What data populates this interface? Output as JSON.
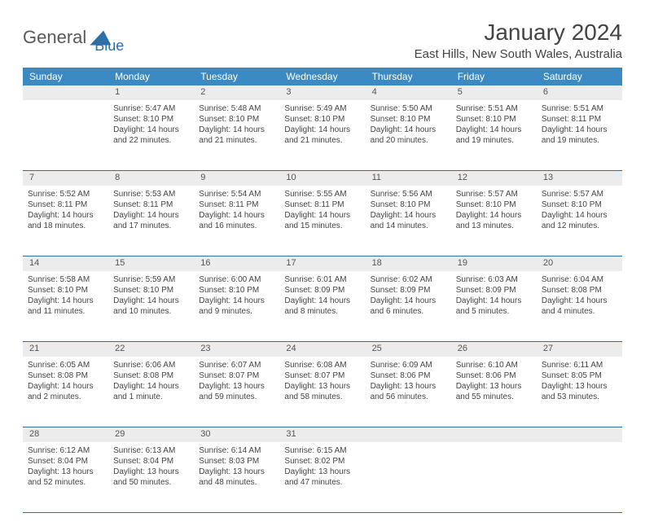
{
  "logo": {
    "general": "General",
    "blue": "Blue"
  },
  "title": "January 2024",
  "location": "East Hills, New South Wales, Australia",
  "day_headers": [
    "Sunday",
    "Monday",
    "Tuesday",
    "Wednesday",
    "Thursday",
    "Friday",
    "Saturday"
  ],
  "colors": {
    "header_bg": "#3b8ac4",
    "header_text": "#ffffff",
    "daynum_bg": "#ececec",
    "border": "#2d6fa3",
    "logo_blue": "#2f6fa8"
  },
  "weeks": [
    {
      "nums": [
        "",
        "1",
        "2",
        "3",
        "4",
        "5",
        "6"
      ],
      "cells": [
        {
          "sunrise": "",
          "sunset": "",
          "daylight": ""
        },
        {
          "sunrise": "Sunrise: 5:47 AM",
          "sunset": "Sunset: 8:10 PM",
          "daylight": "Daylight: 14 hours and 22 minutes."
        },
        {
          "sunrise": "Sunrise: 5:48 AM",
          "sunset": "Sunset: 8:10 PM",
          "daylight": "Daylight: 14 hours and 21 minutes."
        },
        {
          "sunrise": "Sunrise: 5:49 AM",
          "sunset": "Sunset: 8:10 PM",
          "daylight": "Daylight: 14 hours and 21 minutes."
        },
        {
          "sunrise": "Sunrise: 5:50 AM",
          "sunset": "Sunset: 8:10 PM",
          "daylight": "Daylight: 14 hours and 20 minutes."
        },
        {
          "sunrise": "Sunrise: 5:51 AM",
          "sunset": "Sunset: 8:10 PM",
          "daylight": "Daylight: 14 hours and 19 minutes."
        },
        {
          "sunrise": "Sunrise: 5:51 AM",
          "sunset": "Sunset: 8:11 PM",
          "daylight": "Daylight: 14 hours and 19 minutes."
        }
      ]
    },
    {
      "nums": [
        "7",
        "8",
        "9",
        "10",
        "11",
        "12",
        "13"
      ],
      "cells": [
        {
          "sunrise": "Sunrise: 5:52 AM",
          "sunset": "Sunset: 8:11 PM",
          "daylight": "Daylight: 14 hours and 18 minutes."
        },
        {
          "sunrise": "Sunrise: 5:53 AM",
          "sunset": "Sunset: 8:11 PM",
          "daylight": "Daylight: 14 hours and 17 minutes."
        },
        {
          "sunrise": "Sunrise: 5:54 AM",
          "sunset": "Sunset: 8:11 PM",
          "daylight": "Daylight: 14 hours and 16 minutes."
        },
        {
          "sunrise": "Sunrise: 5:55 AM",
          "sunset": "Sunset: 8:11 PM",
          "daylight": "Daylight: 14 hours and 15 minutes."
        },
        {
          "sunrise": "Sunrise: 5:56 AM",
          "sunset": "Sunset: 8:10 PM",
          "daylight": "Daylight: 14 hours and 14 minutes."
        },
        {
          "sunrise": "Sunrise: 5:57 AM",
          "sunset": "Sunset: 8:10 PM",
          "daylight": "Daylight: 14 hours and 13 minutes."
        },
        {
          "sunrise": "Sunrise: 5:57 AM",
          "sunset": "Sunset: 8:10 PM",
          "daylight": "Daylight: 14 hours and 12 minutes."
        }
      ]
    },
    {
      "nums": [
        "14",
        "15",
        "16",
        "17",
        "18",
        "19",
        "20"
      ],
      "cells": [
        {
          "sunrise": "Sunrise: 5:58 AM",
          "sunset": "Sunset: 8:10 PM",
          "daylight": "Daylight: 14 hours and 11 minutes."
        },
        {
          "sunrise": "Sunrise: 5:59 AM",
          "sunset": "Sunset: 8:10 PM",
          "daylight": "Daylight: 14 hours and 10 minutes."
        },
        {
          "sunrise": "Sunrise: 6:00 AM",
          "sunset": "Sunset: 8:10 PM",
          "daylight": "Daylight: 14 hours and 9 minutes."
        },
        {
          "sunrise": "Sunrise: 6:01 AM",
          "sunset": "Sunset: 8:09 PM",
          "daylight": "Daylight: 14 hours and 8 minutes."
        },
        {
          "sunrise": "Sunrise: 6:02 AM",
          "sunset": "Sunset: 8:09 PM",
          "daylight": "Daylight: 14 hours and 6 minutes."
        },
        {
          "sunrise": "Sunrise: 6:03 AM",
          "sunset": "Sunset: 8:09 PM",
          "daylight": "Daylight: 14 hours and 5 minutes."
        },
        {
          "sunrise": "Sunrise: 6:04 AM",
          "sunset": "Sunset: 8:08 PM",
          "daylight": "Daylight: 14 hours and 4 minutes."
        }
      ]
    },
    {
      "nums": [
        "21",
        "22",
        "23",
        "24",
        "25",
        "26",
        "27"
      ],
      "cells": [
        {
          "sunrise": "Sunrise: 6:05 AM",
          "sunset": "Sunset: 8:08 PM",
          "daylight": "Daylight: 14 hours and 2 minutes."
        },
        {
          "sunrise": "Sunrise: 6:06 AM",
          "sunset": "Sunset: 8:08 PM",
          "daylight": "Daylight: 14 hours and 1 minute."
        },
        {
          "sunrise": "Sunrise: 6:07 AM",
          "sunset": "Sunset: 8:07 PM",
          "daylight": "Daylight: 13 hours and 59 minutes."
        },
        {
          "sunrise": "Sunrise: 6:08 AM",
          "sunset": "Sunset: 8:07 PM",
          "daylight": "Daylight: 13 hours and 58 minutes."
        },
        {
          "sunrise": "Sunrise: 6:09 AM",
          "sunset": "Sunset: 8:06 PM",
          "daylight": "Daylight: 13 hours and 56 minutes."
        },
        {
          "sunrise": "Sunrise: 6:10 AM",
          "sunset": "Sunset: 8:06 PM",
          "daylight": "Daylight: 13 hours and 55 minutes."
        },
        {
          "sunrise": "Sunrise: 6:11 AM",
          "sunset": "Sunset: 8:05 PM",
          "daylight": "Daylight: 13 hours and 53 minutes."
        }
      ]
    },
    {
      "nums": [
        "28",
        "29",
        "30",
        "31",
        "",
        "",
        ""
      ],
      "cells": [
        {
          "sunrise": "Sunrise: 6:12 AM",
          "sunset": "Sunset: 8:04 PM",
          "daylight": "Daylight: 13 hours and 52 minutes."
        },
        {
          "sunrise": "Sunrise: 6:13 AM",
          "sunset": "Sunset: 8:04 PM",
          "daylight": "Daylight: 13 hours and 50 minutes."
        },
        {
          "sunrise": "Sunrise: 6:14 AM",
          "sunset": "Sunset: 8:03 PM",
          "daylight": "Daylight: 13 hours and 48 minutes."
        },
        {
          "sunrise": "Sunrise: 6:15 AM",
          "sunset": "Sunset: 8:02 PM",
          "daylight": "Daylight: 13 hours and 47 minutes."
        },
        {
          "sunrise": "",
          "sunset": "",
          "daylight": ""
        },
        {
          "sunrise": "",
          "sunset": "",
          "daylight": ""
        },
        {
          "sunrise": "",
          "sunset": "",
          "daylight": ""
        }
      ]
    }
  ]
}
